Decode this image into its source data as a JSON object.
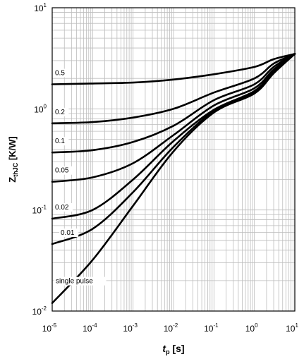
{
  "chart_data": {
    "type": "line",
    "x_scale": "log",
    "y_scale": "log",
    "xlim": [
      1e-05,
      10
    ],
    "ylim": [
      0.01,
      10
    ],
    "grid": true,
    "xlabel": {
      "main": "t",
      "sub": "p",
      "unit": " [s]"
    },
    "ylabel": {
      "main": "Z",
      "sub": "thJC",
      "unit": " [K/W]"
    },
    "x_ticks": [
      {
        "base": "10",
        "exp": "-5"
      },
      {
        "base": "10",
        "exp": "-4"
      },
      {
        "base": "10",
        "exp": "-3"
      },
      {
        "base": "10",
        "exp": "-2"
      },
      {
        "base": "10",
        "exp": "-1"
      },
      {
        "base": "10",
        "exp": "0"
      },
      {
        "base": "10",
        "exp": "1"
      }
    ],
    "y_ticks": [
      {
        "base": "10",
        "exp": "-2"
      },
      {
        "base": "10",
        "exp": "-1"
      },
      {
        "base": "10",
        "exp": "0"
      },
      {
        "base": "10",
        "exp": "1"
      }
    ],
    "series": [
      {
        "name": "0.5",
        "points": [
          [
            1e-05,
            1.75
          ],
          [
            0.0001,
            1.78
          ],
          [
            0.001,
            1.82
          ],
          [
            0.01,
            1.95
          ],
          [
            0.1,
            2.2
          ],
          [
            1,
            2.6
          ],
          [
            3,
            3.1
          ],
          [
            10,
            3.5
          ]
        ]
      },
      {
        "name": "0.2",
        "points": [
          [
            1e-05,
            0.72
          ],
          [
            0.0001,
            0.74
          ],
          [
            0.001,
            0.82
          ],
          [
            0.01,
            1.0
          ],
          [
            0.1,
            1.45
          ],
          [
            1,
            2.0
          ],
          [
            3,
            2.8
          ],
          [
            10,
            3.5
          ]
        ]
      },
      {
        "name": "0.1",
        "points": [
          [
            1e-05,
            0.37
          ],
          [
            0.0001,
            0.39
          ],
          [
            0.001,
            0.47
          ],
          [
            0.01,
            0.68
          ],
          [
            0.1,
            1.22
          ],
          [
            1,
            1.75
          ],
          [
            3,
            2.6
          ],
          [
            10,
            3.5
          ]
        ]
      },
      {
        "name": "0.05",
        "points": [
          [
            1e-05,
            0.19
          ],
          [
            0.0001,
            0.21
          ],
          [
            0.001,
            0.29
          ],
          [
            0.01,
            0.55
          ],
          [
            0.1,
            1.08
          ],
          [
            1,
            1.6
          ],
          [
            3,
            2.45
          ],
          [
            10,
            3.5
          ]
        ]
      },
      {
        "name": "0.02",
        "points": [
          [
            1e-05,
            0.082
          ],
          [
            0.0001,
            0.1
          ],
          [
            0.001,
            0.2
          ],
          [
            0.01,
            0.48
          ],
          [
            0.1,
            0.98
          ],
          [
            1,
            1.5
          ],
          [
            3,
            2.35
          ],
          [
            10,
            3.5
          ]
        ]
      },
      {
        "name": "0.01",
        "points": [
          [
            1e-05,
            0.046
          ],
          [
            0.0001,
            0.065
          ],
          [
            0.001,
            0.15
          ],
          [
            0.01,
            0.42
          ],
          [
            0.1,
            0.95
          ],
          [
            1,
            1.45
          ],
          [
            3,
            2.3
          ],
          [
            10,
            3.5
          ]
        ]
      },
      {
        "name": "single pulse",
        "points": [
          [
            1e-05,
            0.012
          ],
          [
            0.0001,
            0.032
          ],
          [
            0.001,
            0.11
          ],
          [
            0.01,
            0.38
          ],
          [
            0.1,
            0.92
          ],
          [
            1,
            1.42
          ],
          [
            3,
            2.25
          ],
          [
            10,
            3.5
          ]
        ]
      }
    ]
  }
}
